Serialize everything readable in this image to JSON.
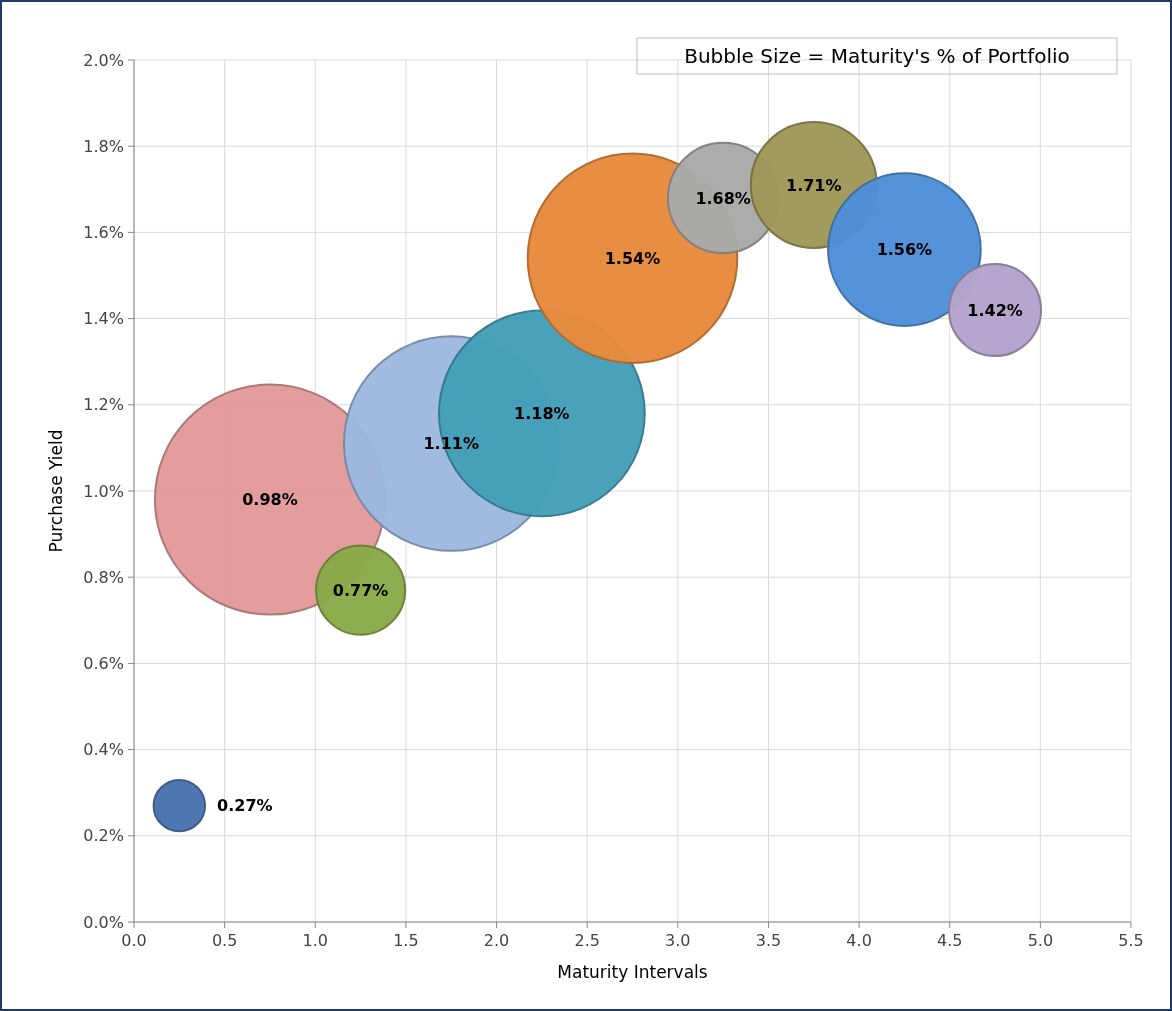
{
  "chart_data": {
    "type": "bubble",
    "xlabel": "Maturity Intervals",
    "ylabel": "Purchase Yield",
    "annotations": [
      "Bubble Size = Maturity's % of Portfolio"
    ],
    "x": [
      0.25,
      0.75,
      1.25,
      1.75,
      2.25,
      2.75,
      3.25,
      3.75,
      4.25,
      4.75
    ],
    "values": [
      0.27,
      0.98,
      0.77,
      1.11,
      1.18,
      1.54,
      1.68,
      1.71,
      1.56,
      1.42
    ],
    "sizes": [
      0.05,
      1,
      0.15,
      0.87,
      0.8,
      0.83,
      0.23,
      0.3,
      0.44,
      0.16
    ],
    "value_labels": [
      "0.27%",
      "0.98%",
      "0.77%",
      "1.11%",
      "1.18%",
      "1.54%",
      "1.68%",
      "1.71%",
      "1.56%",
      "1.42%"
    ],
    "colors": [
      "#4a74b0",
      "#e39a9a",
      "#8aab4a",
      "#9db8e0",
      "#44a0b8",
      "#e88b3c",
      "#aaaaaa",
      "#a09858",
      "#4f8fd8",
      "#b4a4cc"
    ],
    "xlim": [
      0,
      5.5
    ],
    "xticks": [
      {
        "value": 0,
        "label": "0.0"
      },
      {
        "value": 0.5,
        "label": "0.5"
      },
      {
        "value": 1,
        "label": "1.0"
      },
      {
        "value": 1.5,
        "label": "1.5"
      },
      {
        "value": 2,
        "label": "2.0"
      },
      {
        "value": 2.5,
        "label": "2.5"
      },
      {
        "value": 3,
        "label": "3.0"
      },
      {
        "value": 3.5,
        "label": "3.5"
      },
      {
        "value": 4,
        "label": "4.0"
      },
      {
        "value": 4.5,
        "label": "4.5"
      },
      {
        "value": 5,
        "label": "5.0"
      },
      {
        "value": 5.5,
        "label": "5.5"
      }
    ],
    "ylim": [
      0,
      2
    ],
    "yticks": [
      {
        "value": 0,
        "label": "0.0%"
      },
      {
        "value": 0.2,
        "label": "0.2%"
      },
      {
        "value": 0.4,
        "label": "0.4%"
      },
      {
        "value": 0.6,
        "label": "0.6%"
      },
      {
        "value": 0.8,
        "label": "0.8%"
      },
      {
        "value": 1,
        "label": "1.0%"
      },
      {
        "value": 1.2,
        "label": "1.2%"
      },
      {
        "value": 1.4,
        "label": "1.4%"
      },
      {
        "value": 1.6,
        "label": "1.6%"
      },
      {
        "value": 1.8,
        "label": "1.8%"
      },
      {
        "value": 2,
        "label": "2.0%"
      }
    ],
    "grid": true
  }
}
